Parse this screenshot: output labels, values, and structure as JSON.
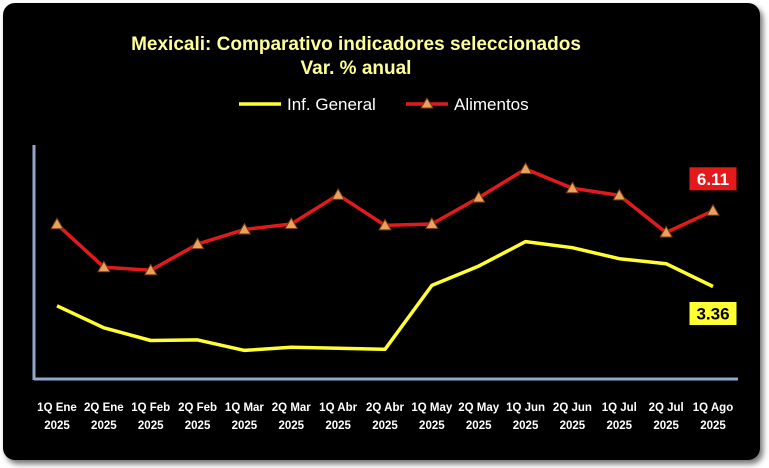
{
  "colors": {
    "background": "#000000",
    "title": "#ffff99",
    "inf_general": "#ffff33",
    "alimentos": "#e31a1c",
    "marker_fill": "#e8a25c",
    "axis": "#8fa8cc",
    "inf_callout_bg": "#ffff33",
    "alimentos_callout_bg": "#e31a1c"
  },
  "chart_data": {
    "type": "line",
    "title": "Mexicali: Comparativo indicadores seleccionados",
    "subtitle": "Var. % anual",
    "xlabel": "",
    "ylabel": "",
    "legend_position": "top",
    "grid": false,
    "ylim": [
      0,
      8.5
    ],
    "categories": [
      [
        "1Q Ene",
        "2025"
      ],
      [
        "2Q Ene",
        "2025"
      ],
      [
        "1Q Feb",
        "2025"
      ],
      [
        "2Q Feb",
        "2025"
      ],
      [
        "1Q Mar",
        "2025"
      ],
      [
        "2Q Mar",
        "2025"
      ],
      [
        "1Q Abr",
        "2025"
      ],
      [
        "2Q Abr",
        "2025"
      ],
      [
        "1Q May",
        "2025"
      ],
      [
        "2Q May",
        "2025"
      ],
      [
        "1Q Jun",
        "2025"
      ],
      [
        "2Q Jun",
        "2025"
      ],
      [
        "1Q Jul",
        "2025"
      ],
      [
        "2Q Jul",
        "2025"
      ],
      [
        "1Q Ago",
        "2025"
      ]
    ],
    "series": [
      {
        "name": "Inf. General",
        "marker": "none",
        "values": [
          2.66,
          1.86,
          1.4,
          1.42,
          1.04,
          1.15,
          1.12,
          1.08,
          3.4,
          4.1,
          4.99,
          4.77,
          4.37,
          4.19,
          3.36
        ]
      },
      {
        "name": "Alimentos",
        "marker": "triangle",
        "values": [
          5.62,
          4.06,
          3.95,
          4.9,
          5.43,
          5.63,
          6.69,
          5.58,
          5.63,
          6.59,
          7.63,
          6.93,
          6.67,
          5.32,
          6.11
        ]
      }
    ],
    "annotations": [
      {
        "series": "Alimentos",
        "label": "6.11"
      },
      {
        "series": "Inf. General",
        "label": "3.36"
      }
    ]
  }
}
